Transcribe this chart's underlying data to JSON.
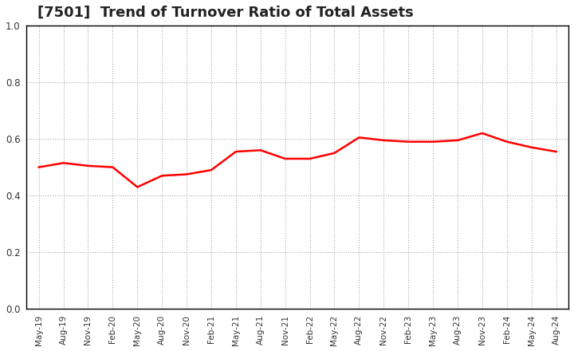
{
  "title": "[7501]  Trend of Turnover Ratio of Total Assets",
  "title_fontsize": 13,
  "title_fontweight": "bold",
  "line_color": "#FF0000",
  "line_width": 1.8,
  "background_color": "#FFFFFF",
  "grid_color": "#AAAAAA",
  "ylim": [
    0.0,
    1.0
  ],
  "yticks": [
    0.0,
    0.2,
    0.4,
    0.6,
    0.8,
    1.0
  ],
  "x_labels": [
    "May-19",
    "Aug-19",
    "Nov-19",
    "Feb-20",
    "May-20",
    "Aug-20",
    "Nov-20",
    "Feb-21",
    "May-21",
    "Aug-21",
    "Nov-21",
    "Feb-22",
    "May-22",
    "Aug-22",
    "Nov-22",
    "Feb-23",
    "May-23",
    "Aug-23",
    "Nov-23",
    "Feb-24",
    "May-24",
    "Aug-24"
  ],
  "values": [
    0.5,
    0.515,
    0.505,
    0.5,
    0.43,
    0.47,
    0.475,
    0.49,
    0.555,
    0.56,
    0.53,
    0.53,
    0.55,
    0.605,
    0.595,
    0.59,
    0.59,
    0.595,
    0.62,
    0.59,
    0.57,
    0.555
  ]
}
